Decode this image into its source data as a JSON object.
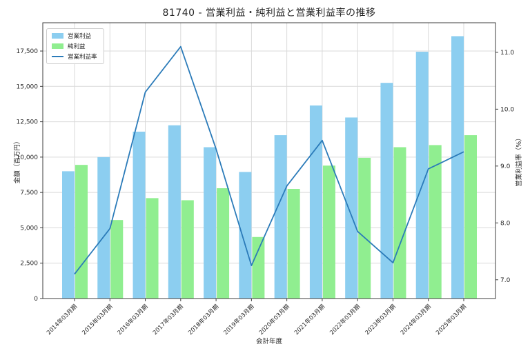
{
  "chart_data": {
    "type": "bar+line",
    "title": "81740 - 営業利益・純利益と営業利益率の推移",
    "xlabel": "会計年度",
    "ylabel_left": "金額（百万円）",
    "ylabel_right": "営業利益率（%）",
    "grid": true,
    "legend_position": "upper left",
    "categories": [
      "2014年03月期",
      "2015年03月期",
      "2016年03月期",
      "2017年03月期",
      "2018年03月期",
      "2019年03月期",
      "2020年03月期",
      "2021年03月期",
      "2022年03月期",
      "2023年03月期",
      "2024年03月期",
      "2025年03月期"
    ],
    "series": [
      {
        "name": "営業利益",
        "type": "bar",
        "axis": "left",
        "color": "#8CCEF0",
        "values": [
          9000,
          10000,
          11800,
          12250,
          10700,
          8950,
          11550,
          13650,
          12800,
          15250,
          17450,
          18550
        ]
      },
      {
        "name": "純利益",
        "type": "bar",
        "axis": "left",
        "color": "#90EE90",
        "values": [
          9450,
          5550,
          7100,
          6950,
          7800,
          4350,
          7750,
          9400,
          9950,
          10700,
          10850,
          11550
        ]
      },
      {
        "name": "営業利益率",
        "type": "line",
        "axis": "right",
        "color": "#2B7BB9",
        "values": [
          7.1,
          7.9,
          10.3,
          11.1,
          9.3,
          7.25,
          8.65,
          9.45,
          7.85,
          7.3,
          8.95,
          9.25
        ]
      }
    ],
    "left_axis": {
      "tick_values": [
        0,
        2500,
        5000,
        7500,
        10000,
        12500,
        15000,
        17500
      ],
      "tick_labels": [
        "0",
        "2,500",
        "5,000",
        "7,500",
        "10,000",
        "12,500",
        "15,000",
        "17,500"
      ],
      "ylim": [
        0,
        19500
      ]
    },
    "right_axis": {
      "tick_values": [
        7,
        8,
        9,
        10,
        11
      ],
      "tick_labels": [
        "7.0",
        "8.0",
        "9.0",
        "10.0",
        "11.0"
      ],
      "ylim": [
        6.67,
        11.52
      ]
    },
    "colors": {
      "grid": "#d9d9d9",
      "spine": "#3c3c3c",
      "background": "#ffffff"
    }
  }
}
